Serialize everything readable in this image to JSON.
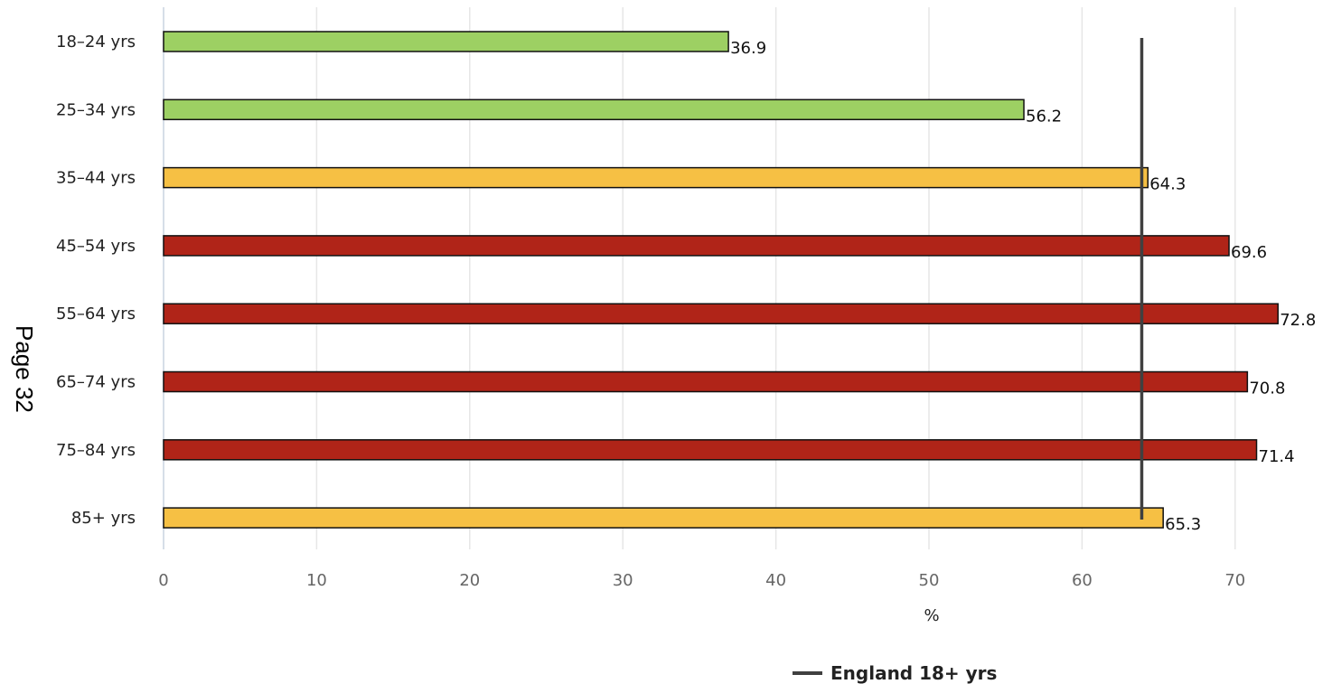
{
  "page_label": "Page 32",
  "chart_data": {
    "type": "bar",
    "orientation": "horizontal",
    "categories": [
      "18–24 yrs",
      "25–34 yrs",
      "35–44 yrs",
      "45–54 yrs",
      "55–64 yrs",
      "65–74 yrs",
      "75–84 yrs",
      "85+ yrs"
    ],
    "values": [
      36.9,
      56.2,
      64.3,
      69.6,
      72.8,
      70.8,
      71.4,
      65.3
    ],
    "value_labels": [
      "36.9",
      "56.2",
      "64.3",
      "69.6",
      "72.8",
      "70.8",
      "71.4",
      "65.3"
    ],
    "bar_colors": [
      "#9dd063",
      "#9dd063",
      "#f6c044",
      "#b02418",
      "#b02418",
      "#b02418",
      "#b02418",
      "#f6c044"
    ],
    "bar_outline_color": "#111111",
    "reference_line": {
      "name": "England 18+ yrs",
      "value": 63.9,
      "color": "#404040"
    },
    "xlabel": "%",
    "ylabel": "",
    "xlim": [
      0,
      74
    ],
    "xticks": [
      0,
      10,
      20,
      30,
      40,
      50,
      60,
      70
    ],
    "xtick_labels": [
      "0",
      "10",
      "20",
      "30",
      "40",
      "50",
      "60",
      "70"
    ],
    "grid": "vertical",
    "grid_color": "#e6e6e6",
    "legend_position": "bottom-center"
  }
}
